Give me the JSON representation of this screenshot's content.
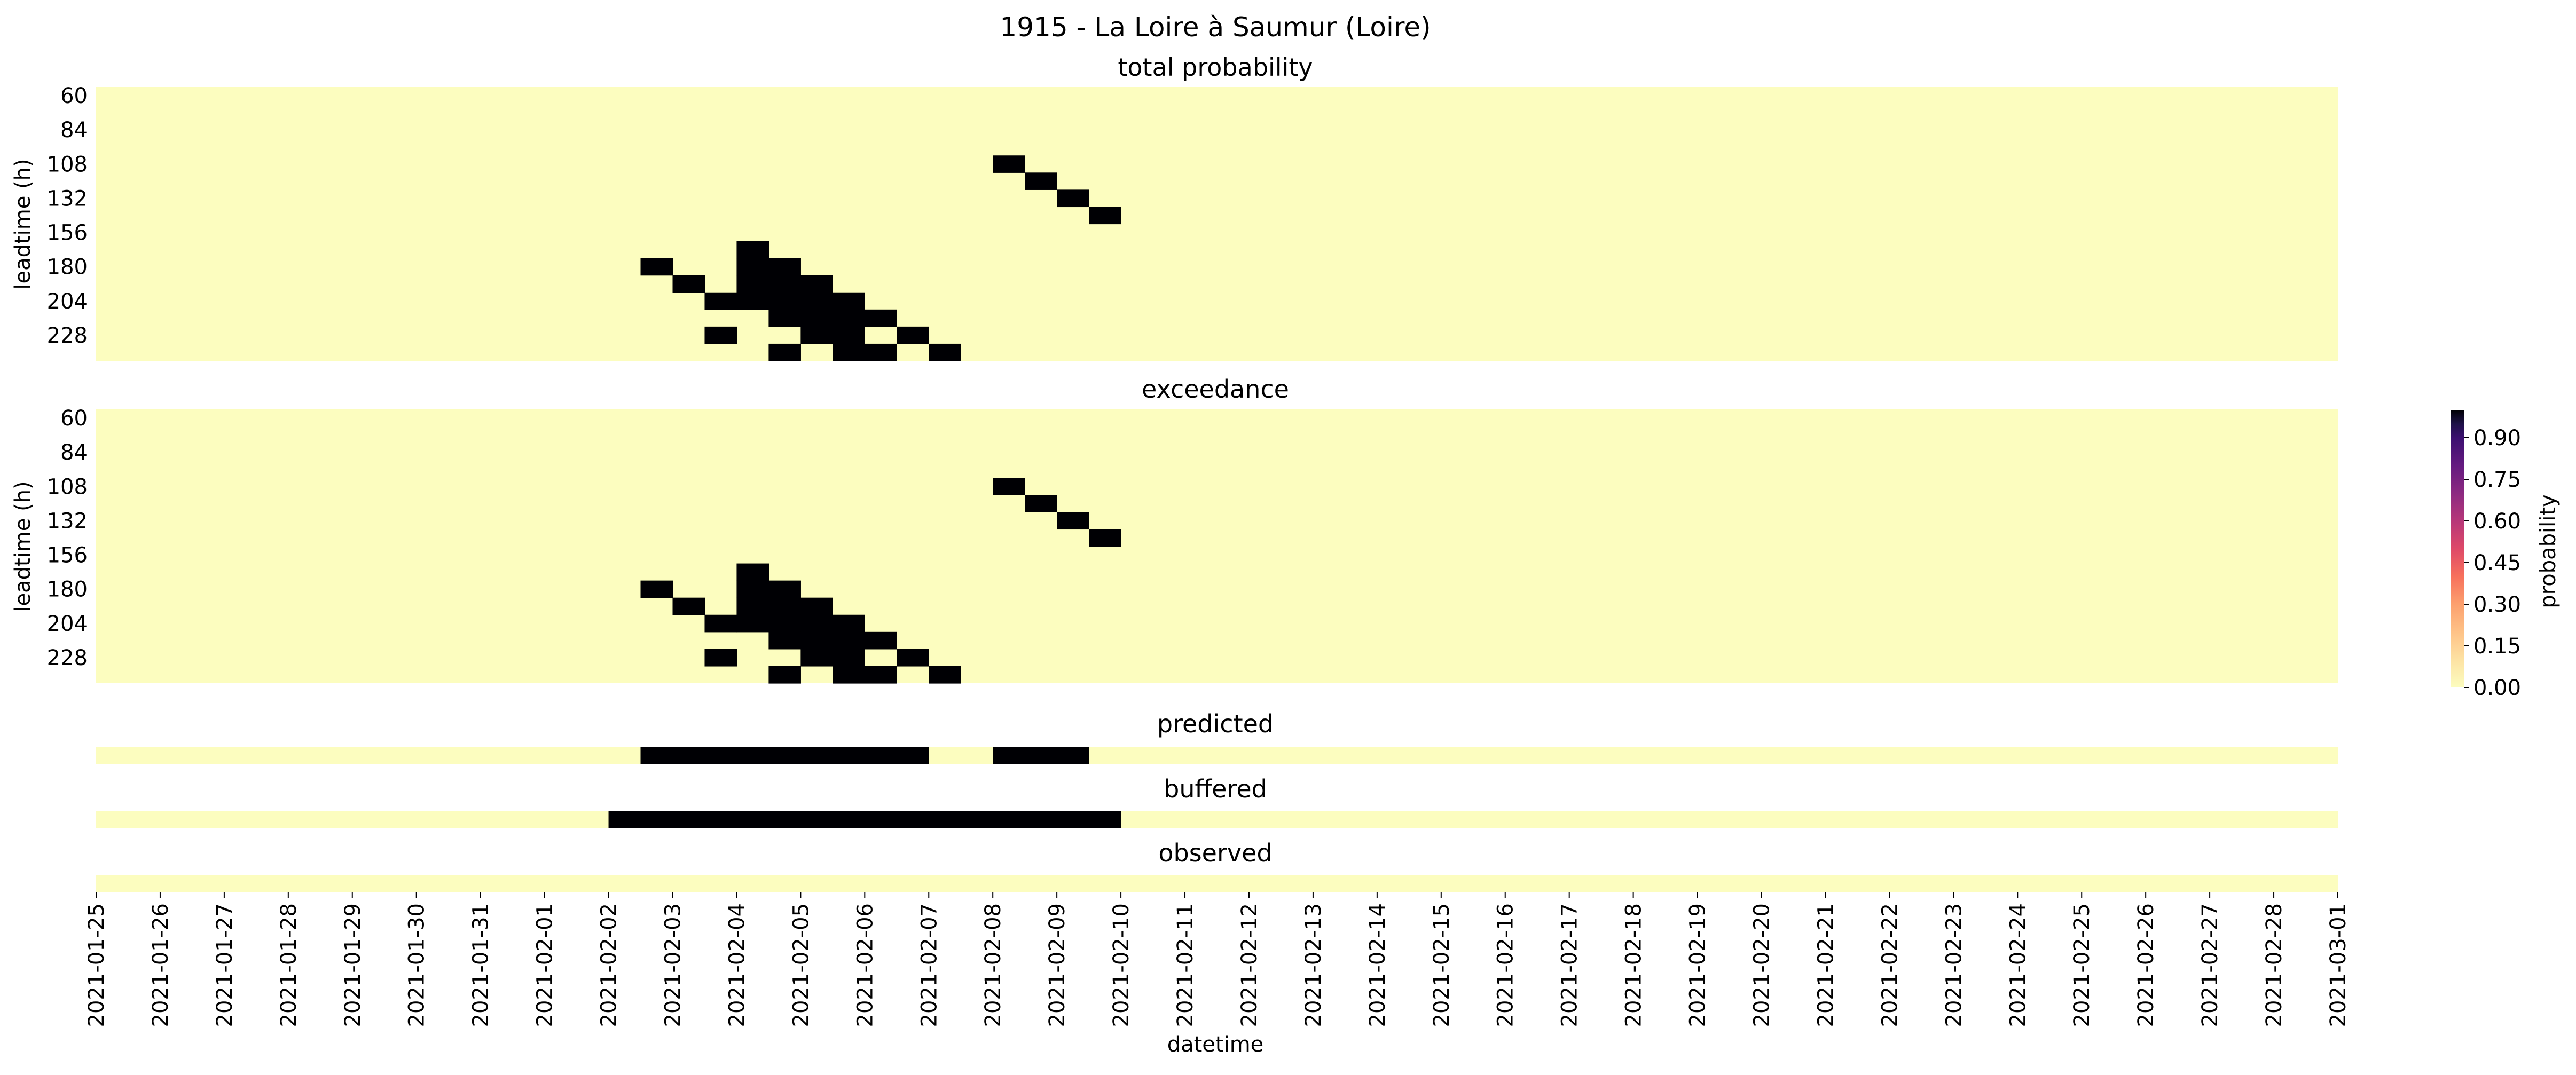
{
  "chart_data": {
    "type": "heatmap",
    "title": "1915 - La Loire à Saumur (Loire)",
    "xlabel": "datetime",
    "x_dates": [
      "2021-01-25",
      "2021-01-26",
      "2021-01-27",
      "2021-01-28",
      "2021-01-29",
      "2021-01-30",
      "2021-01-31",
      "2021-02-01",
      "2021-02-02",
      "2021-02-03",
      "2021-02-04",
      "2021-02-05",
      "2021-02-06",
      "2021-02-07",
      "2021-02-08",
      "2021-02-09",
      "2021-02-10",
      "2021-02-11",
      "2021-02-12",
      "2021-02-13",
      "2021-02-14",
      "2021-02-15",
      "2021-02-16",
      "2021-02-17",
      "2021-02-18",
      "2021-02-19",
      "2021-02-20",
      "2021-02-21",
      "2021-02-22",
      "2021-02-23",
      "2021-02-24",
      "2021-02-25",
      "2021-02-26",
      "2021-02-27",
      "2021-02-28",
      "2021-03-01"
    ],
    "time_step_hours": 12,
    "heatmaps": [
      {
        "title": "total probability",
        "ylabel": "leadtime (h)",
        "y_ticks": [
          60,
          84,
          108,
          132,
          156,
          180,
          204,
          228
        ],
        "leadtimes": [
          60,
          72,
          84,
          96,
          108,
          120,
          132,
          144,
          156,
          168,
          180,
          192,
          204,
          216,
          228,
          240
        ],
        "hits": [
          {
            "leadtime": 108,
            "dates": [
              "2021-02-08 00:00"
            ]
          },
          {
            "leadtime": 120,
            "dates": [
              "2021-02-08 12:00"
            ]
          },
          {
            "leadtime": 132,
            "dates": [
              "2021-02-09 00:00"
            ]
          },
          {
            "leadtime": 144,
            "dates": [
              "2021-02-09 12:00"
            ]
          },
          {
            "leadtime": 168,
            "dates": [
              "2021-02-04 00:00"
            ]
          },
          {
            "leadtime": 180,
            "dates": [
              "2021-02-02 12:00",
              "2021-02-04 00:00",
              "2021-02-04 12:00"
            ]
          },
          {
            "leadtime": 192,
            "dates": [
              "2021-02-03 00:00",
              "2021-02-04 00:00",
              "2021-02-04 12:00",
              "2021-02-05 00:00"
            ]
          },
          {
            "leadtime": 204,
            "dates": [
              "2021-02-03 12:00",
              "2021-02-04 00:00",
              "2021-02-04 12:00",
              "2021-02-05 00:00",
              "2021-02-05 12:00"
            ]
          },
          {
            "leadtime": 216,
            "dates": [
              "2021-02-04 12:00",
              "2021-02-05 00:00",
              "2021-02-05 12:00",
              "2021-02-06 00:00"
            ]
          },
          {
            "leadtime": 228,
            "dates": [
              "2021-02-03 12:00",
              "2021-02-05 00:00",
              "2021-02-05 12:00",
              "2021-02-06 12:00"
            ]
          },
          {
            "leadtime": 240,
            "dates": [
              "2021-02-04 12:00",
              "2021-02-05 12:00",
              "2021-02-06 00:00",
              "2021-02-07 00:00"
            ]
          }
        ]
      },
      {
        "title": "exceedance",
        "ylabel": "leadtime (h)",
        "y_ticks": [
          60,
          84,
          108,
          132,
          156,
          180,
          204,
          228
        ],
        "leadtimes": [
          60,
          72,
          84,
          96,
          108,
          120,
          132,
          144,
          156,
          168,
          180,
          192,
          204,
          216,
          228,
          240
        ],
        "hits": [
          {
            "leadtime": 108,
            "dates": [
              "2021-02-08 00:00"
            ]
          },
          {
            "leadtime": 120,
            "dates": [
              "2021-02-08 12:00"
            ]
          },
          {
            "leadtime": 132,
            "dates": [
              "2021-02-09 00:00"
            ]
          },
          {
            "leadtime": 144,
            "dates": [
              "2021-02-09 12:00"
            ]
          },
          {
            "leadtime": 168,
            "dates": [
              "2021-02-04 00:00"
            ]
          },
          {
            "leadtime": 180,
            "dates": [
              "2021-02-02 12:00",
              "2021-02-04 00:00",
              "2021-02-04 12:00"
            ]
          },
          {
            "leadtime": 192,
            "dates": [
              "2021-02-03 00:00",
              "2021-02-04 00:00",
              "2021-02-04 12:00",
              "2021-02-05 00:00"
            ]
          },
          {
            "leadtime": 204,
            "dates": [
              "2021-02-03 12:00",
              "2021-02-04 00:00",
              "2021-02-04 12:00",
              "2021-02-05 00:00",
              "2021-02-05 12:00"
            ]
          },
          {
            "leadtime": 216,
            "dates": [
              "2021-02-04 12:00",
              "2021-02-05 00:00",
              "2021-02-05 12:00",
              "2021-02-06 00:00"
            ]
          },
          {
            "leadtime": 228,
            "dates": [
              "2021-02-03 12:00",
              "2021-02-05 00:00",
              "2021-02-05 12:00",
              "2021-02-06 12:00"
            ]
          },
          {
            "leadtime": 240,
            "dates": [
              "2021-02-04 12:00",
              "2021-02-05 12:00",
              "2021-02-06 00:00",
              "2021-02-07 00:00"
            ]
          }
        ]
      }
    ],
    "strips": [
      {
        "title": "predicted",
        "events": [
          {
            "start": "2021-02-02 12:00",
            "end": "2021-02-07 00:00"
          },
          {
            "start": "2021-02-08 00:00",
            "end": "2021-02-09 12:00"
          }
        ]
      },
      {
        "title": "buffered",
        "events": [
          {
            "start": "2021-02-02 00:00",
            "end": "2021-02-10 00:00"
          }
        ]
      },
      {
        "title": "observed",
        "events": []
      }
    ],
    "colorbar": {
      "label": "probability",
      "colormap": "magma_r",
      "range": [
        0,
        1
      ],
      "ticks": [
        "0.00",
        "0.15",
        "0.30",
        "0.45",
        "0.60",
        "0.75",
        "0.90"
      ],
      "low_color": "#fcfdbf",
      "high_color": "#000004"
    }
  }
}
